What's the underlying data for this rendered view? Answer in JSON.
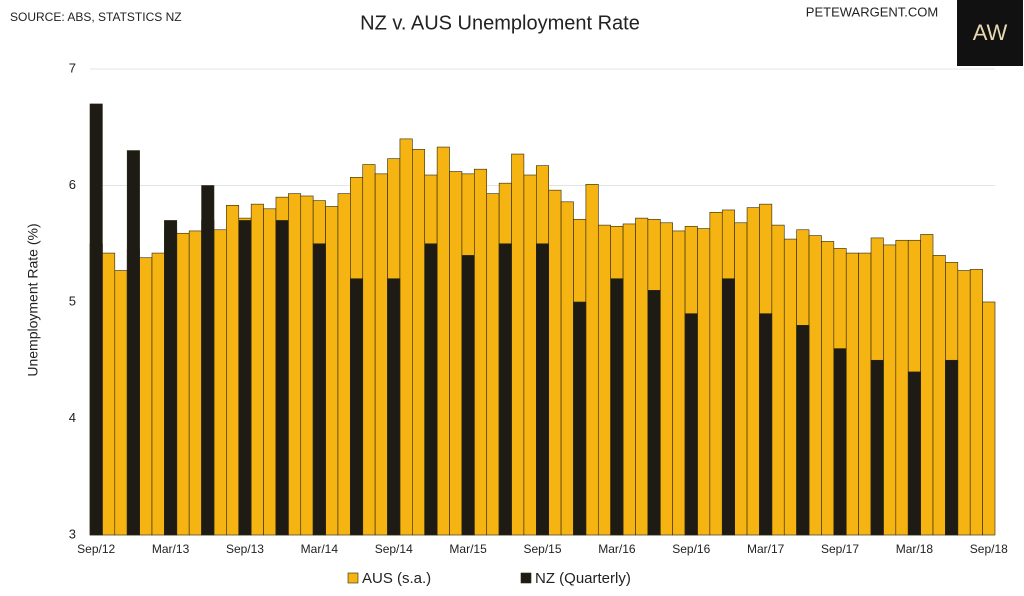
{
  "source": "SOURCE: ABS, STATSTICS NZ",
  "site": "PETEWARGENT.COM",
  "logo": "AW",
  "chart_data": {
    "type": "bar",
    "title": "NZ v. AUS Unemployment Rate",
    "ylabel": "Unemployment Rate (%)",
    "categories": [
      "Sep/12",
      null,
      null,
      null,
      null,
      null,
      "Mar/13",
      null,
      null,
      null,
      null,
      null,
      "Sep/13",
      null,
      null,
      null,
      null,
      null,
      "Mar/14",
      null,
      null,
      null,
      null,
      null,
      "Sep/14",
      null,
      null,
      null,
      null,
      null,
      "Mar/15",
      null,
      null,
      null,
      null,
      null,
      "Sep/15",
      null,
      null,
      null,
      null,
      null,
      "Mar/16",
      null,
      null,
      null,
      null,
      null,
      "Sep/16",
      null,
      null,
      null,
      null,
      null,
      "Mar/17",
      null,
      null,
      null,
      null,
      null,
      "Sep/17",
      null,
      null,
      null,
      null,
      null,
      "Mar/18",
      null,
      null,
      null,
      null,
      null,
      "Sep/18"
    ],
    "series": [
      {
        "name": "AUS (s.a.)",
        "color": "#f6b412",
        "values": [
          5.5,
          5.42,
          5.27,
          5.45,
          5.38,
          5.42,
          5.62,
          5.59,
          5.61,
          5.7,
          5.62,
          5.83,
          5.72,
          5.84,
          5.8,
          5.9,
          5.93,
          5.91,
          5.87,
          5.82,
          5.93,
          6.07,
          6.18,
          6.1,
          6.23,
          6.4,
          6.31,
          6.09,
          6.33,
          6.12,
          6.1,
          6.14,
          5.93,
          6.02,
          6.27,
          6.09,
          6.17,
          5.96,
          5.86,
          5.71,
          6.01,
          5.66,
          5.65,
          5.67,
          5.72,
          5.71,
          5.68,
          5.61,
          5.65,
          5.63,
          5.77,
          5.79,
          5.68,
          5.81,
          5.84,
          5.66,
          5.54,
          5.62,
          5.57,
          5.52,
          5.46,
          5.42,
          5.42,
          5.55,
          5.49,
          5.53,
          5.53,
          5.58,
          5.4,
          5.34,
          5.27,
          5.28,
          5.0
        ]
      },
      {
        "name": "NZ (Quarterly)",
        "color": "#1e1b14",
        "values": [
          6.7,
          null,
          null,
          6.3,
          null,
          null,
          5.7,
          null,
          null,
          6.0,
          null,
          null,
          5.7,
          null,
          null,
          5.7,
          null,
          null,
          5.5,
          null,
          null,
          5.2,
          null,
          null,
          5.2,
          null,
          null,
          5.5,
          null,
          null,
          5.4,
          null,
          null,
          5.5,
          null,
          null,
          5.5,
          null,
          null,
          5.0,
          null,
          null,
          5.2,
          null,
          null,
          5.1,
          null,
          null,
          4.9,
          null,
          null,
          5.2,
          null,
          null,
          4.9,
          null,
          null,
          4.8,
          null,
          null,
          4.6,
          null,
          null,
          4.5,
          null,
          null,
          4.4,
          null,
          null,
          4.5,
          null,
          null,
          null
        ]
      }
    ],
    "ylim": [
      3,
      7
    ],
    "yticks": [
      3,
      4,
      5,
      6,
      7
    ],
    "grid": true
  }
}
